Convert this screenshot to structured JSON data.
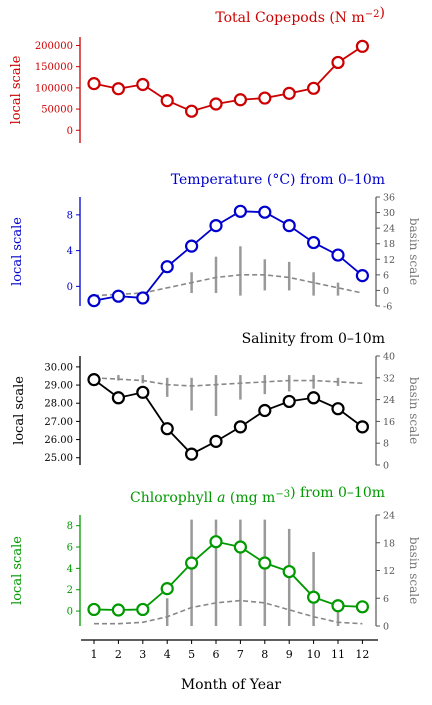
{
  "figure": {
    "xaxis_label": "Month of Year",
    "local_axis_label": "local scale",
    "basin_axis_label": "basin scale"
  },
  "chart_data": [
    {
      "id": "copepods",
      "type": "line",
      "title": "Total Copepods (N m⁻²)",
      "color": "#cc0000",
      "x": [
        1,
        2,
        3,
        4,
        5,
        6,
        7,
        8,
        9,
        10,
        11,
        12
      ],
      "local_series": {
        "values": [
          110000,
          98000,
          108000,
          70000,
          45000,
          62000,
          72000,
          76000,
          87000,
          99000,
          160000,
          198000
        ]
      },
      "local_ylim": [
        -30000,
        220000
      ],
      "local_ticks": [
        0,
        50000,
        100000,
        150000,
        200000
      ],
      "local_tick_labels": [
        "0",
        "50000",
        "100000",
        "150000",
        "200000"
      ]
    },
    {
      "id": "temperature",
      "type": "line",
      "title": "Temperature (°C) from 0–10m",
      "color": "#0000cc",
      "x": [
        1,
        2,
        3,
        4,
        5,
        6,
        7,
        8,
        9,
        10,
        11,
        12
      ],
      "local_series": {
        "values": [
          -1.6,
          -1.1,
          -1.3,
          2.2,
          4.5,
          6.8,
          8.4,
          8.3,
          6.8,
          4.9,
          3.5,
          1.2
        ]
      },
      "local_ylim": [
        -2.2,
        10.0
      ],
      "local_ticks": [
        0,
        4,
        8
      ],
      "local_tick_labels": [
        "0",
        "4",
        "8"
      ],
      "basin_series": {
        "values": [
          -2,
          -1.5,
          -1,
          1,
          3,
          5,
          6,
          6,
          5,
          3,
          1,
          -1
        ]
      },
      "basin_ranges": [
        {
          "x": 5,
          "lo": -1,
          "hi": 7
        },
        {
          "x": 6,
          "lo": -1,
          "hi": 13
        },
        {
          "x": 7,
          "lo": -2,
          "hi": 17
        },
        {
          "x": 8,
          "lo": 0,
          "hi": 12
        },
        {
          "x": 9,
          "lo": 0,
          "hi": 11
        },
        {
          "x": 10,
          "lo": -2,
          "hi": 7
        },
        {
          "x": 11,
          "lo": -2,
          "hi": 3
        }
      ],
      "basin_ylim": [
        -6,
        36
      ],
      "basin_ticks": [
        -6,
        0,
        6,
        12,
        18,
        24,
        30,
        36
      ],
      "basin_tick_labels": [
        "-6",
        "0",
        "6",
        "12",
        "18",
        "24",
        "30",
        "36"
      ]
    },
    {
      "id": "salinity",
      "type": "line",
      "title": "Salinity from 0–10m",
      "color": "#000000",
      "x": [
        1,
        2,
        3,
        4,
        5,
        6,
        7,
        8,
        9,
        10,
        11,
        12
      ],
      "local_series": {
        "values": [
          29.3,
          28.3,
          28.6,
          26.6,
          25.2,
          25.9,
          26.7,
          27.6,
          28.1,
          28.3,
          27.7,
          26.7
        ]
      },
      "local_ylim": [
        24.6,
        30.6
      ],
      "local_ticks": [
        25,
        26,
        27,
        28,
        29,
        30
      ],
      "local_tick_labels": [
        "25.00",
        "26.00",
        "27.00",
        "28.00",
        "29.00",
        "30.00"
      ],
      "basin_series": {
        "values": [
          32,
          31.5,
          31,
          29.5,
          29,
          29.5,
          30,
          30.5,
          31,
          31,
          30.5,
          30
        ]
      },
      "basin_ranges": [
        {
          "x": 2,
          "lo": 31,
          "hi": 33
        },
        {
          "x": 3,
          "lo": 30,
          "hi": 33
        },
        {
          "x": 4,
          "lo": 25,
          "hi": 32
        },
        {
          "x": 5,
          "lo": 20,
          "hi": 32
        },
        {
          "x": 6,
          "lo": 18,
          "hi": 33
        },
        {
          "x": 7,
          "lo": 24,
          "hi": 33
        },
        {
          "x": 8,
          "lo": 26,
          "hi": 33
        },
        {
          "x": 9,
          "lo": 27,
          "hi": 33
        },
        {
          "x": 10,
          "lo": 28,
          "hi": 33
        },
        {
          "x": 11,
          "lo": 29,
          "hi": 32
        }
      ],
      "basin_ylim": [
        0,
        40
      ],
      "basin_ticks": [
        0,
        8,
        16,
        24,
        32,
        40
      ],
      "basin_tick_labels": [
        "0",
        "8",
        "16",
        "24",
        "32",
        "40"
      ]
    },
    {
      "id": "chlorophyll",
      "type": "line",
      "title": "Chlorophyll a (mg m⁻³) from 0–10m",
      "color": "#009900",
      "x": [
        1,
        2,
        3,
        4,
        5,
        6,
        7,
        8,
        9,
        10,
        11,
        12
      ],
      "local_series": {
        "values": [
          0.15,
          0.1,
          0.15,
          2.1,
          4.5,
          6.5,
          6.0,
          4.5,
          3.7,
          1.3,
          0.5,
          0.4
        ]
      },
      "local_ylim": [
        -1.4,
        9.0
      ],
      "local_ticks": [
        0,
        2,
        4,
        6,
        8
      ],
      "local_tick_labels": [
        "0",
        "2",
        "4",
        "6",
        "8"
      ],
      "basin_series": {
        "values": [
          0.5,
          0.5,
          0.8,
          2,
          4,
          5,
          5.5,
          5,
          3.5,
          2,
          0.8,
          0.5
        ]
      },
      "basin_ranges": [
        {
          "x": 4,
          "lo": 0,
          "hi": 6
        },
        {
          "x": 5,
          "lo": 0,
          "hi": 23
        },
        {
          "x": 6,
          "lo": 0,
          "hi": 23
        },
        {
          "x": 7,
          "lo": 0,
          "hi": 23
        },
        {
          "x": 8,
          "lo": 0,
          "hi": 23
        },
        {
          "x": 9,
          "lo": 0,
          "hi": 21
        },
        {
          "x": 10,
          "lo": 0,
          "hi": 16
        },
        {
          "x": 11,
          "lo": 0,
          "hi": 3
        }
      ],
      "basin_ylim": [
        0,
        24
      ],
      "basin_ticks": [
        0,
        6,
        12,
        18,
        24
      ],
      "basin_tick_labels": [
        "0",
        "6",
        "12",
        "18",
        "24"
      ]
    }
  ],
  "x_tick_labels": [
    "1",
    "2",
    "3",
    "4",
    "5",
    "6",
    "7",
    "8",
    "9",
    "10",
    "11",
    "12"
  ]
}
